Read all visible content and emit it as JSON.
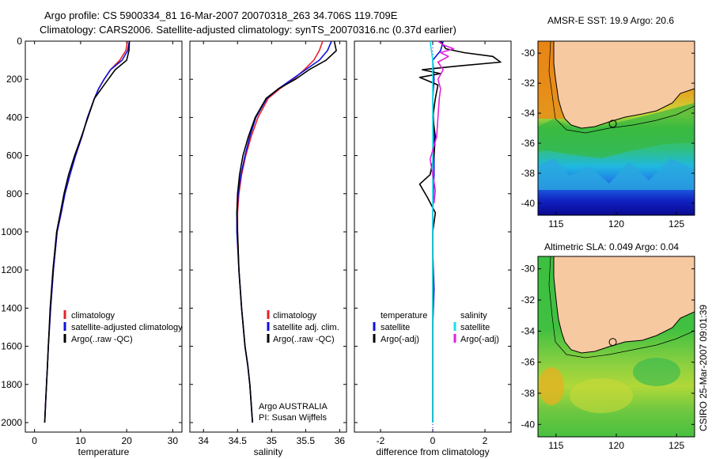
{
  "header": {
    "title_line1": "Argo profile: CS 5900334_81 16-Mar-2007 20070318_263 34.706S 119.709E",
    "title_line2": "Climatology: CARS2006. Satellite-adjusted climatology: synTS_20070316.nc (0.37d earlier)"
  },
  "side_label": "CSIRO 25-Mar-2007 09:01:39",
  "colors": {
    "climatology": "#e8202a",
    "satellite": "#1010e0",
    "argo": "#000000",
    "sat_salinity": "#18e0e8",
    "argo_salinity": "#e020e0",
    "land": "#f7c9a0"
  },
  "chart_data": [
    {
      "type": "line",
      "name": "temperature-panel",
      "xlabel": "temperature",
      "ylabel": "",
      "xlim": [
        -2,
        32
      ],
      "ylim": [
        2050,
        0
      ],
      "xticks": [
        0,
        10,
        20,
        30
      ],
      "yticks": [
        0,
        200,
        400,
        600,
        800,
        1000,
        1200,
        1400,
        1600,
        1800,
        2000
      ],
      "legend": [
        "climatology",
        "satellite-adjusted climatology",
        "Argo(..raw -QC)"
      ],
      "series": [
        {
          "name": "climatology",
          "color": "#e8202a",
          "x": [
            20.2,
            19.8,
            18.5,
            16.5,
            15.1,
            13.9,
            13.0,
            11.5,
            10.3,
            8.9,
            7.7,
            6.6,
            5.8,
            4.9,
            4.1,
            3.5,
            3.0,
            2.8,
            2.6,
            2.4,
            2.2
          ],
          "y": [
            0,
            50,
            100,
            150,
            200,
            250,
            300,
            400,
            500,
            600,
            700,
            800,
            900,
            1000,
            1200,
            1400,
            1600,
            1700,
            1800,
            1900,
            2000
          ]
        },
        {
          "name": "satellite",
          "color": "#1010e0",
          "x": [
            20.6,
            20.2,
            19.0,
            16.5,
            15.1,
            13.9,
            13.0,
            11.5,
            10.3,
            8.9,
            7.7,
            6.6,
            5.8,
            4.9,
            4.1,
            3.5,
            3.0,
            2.8,
            2.6,
            2.4,
            2.2
          ],
          "y": [
            0,
            50,
            100,
            150,
            200,
            250,
            300,
            400,
            500,
            600,
            700,
            800,
            900,
            1000,
            1200,
            1400,
            1600,
            1700,
            1800,
            1900,
            2000
          ]
        },
        {
          "name": "argo",
          "color": "#000000",
          "x": [
            20.6,
            20.5,
            20.0,
            17.5,
            16.0,
            14.5,
            13.0,
            11.6,
            10.2,
            8.7,
            7.4,
            6.4,
            5.6,
            4.8,
            4.0,
            3.4,
            3.0,
            2.8,
            2.6,
            2.4,
            2.2
          ],
          "y": [
            0,
            50,
            100,
            150,
            200,
            250,
            300,
            400,
            500,
            600,
            700,
            800,
            900,
            1000,
            1200,
            1400,
            1600,
            1700,
            1800,
            1900,
            2000
          ]
        }
      ]
    },
    {
      "type": "line",
      "name": "salinity-panel",
      "xlabel": "salinity",
      "ylabel": "",
      "xlim": [
        33.8,
        36.1
      ],
      "ylim": [
        2050,
        0
      ],
      "xticks": [
        34,
        34.5,
        35,
        35.5,
        36
      ],
      "legend": [
        "climatology",
        "satellite adj. clim.",
        "Argo(..raw -QC)"
      ],
      "annotation": [
        "Argo AUSTRALIA",
        "PI: Susan Wijffels"
      ],
      "series": [
        {
          "name": "climatology",
          "color": "#e8202a",
          "x": [
            35.75,
            35.7,
            35.62,
            35.48,
            35.32,
            35.12,
            34.95,
            34.8,
            34.7,
            34.62,
            34.56,
            34.52,
            34.5,
            34.5,
            34.52,
            34.56,
            34.61,
            34.65,
            34.68,
            34.7,
            34.72
          ],
          "y": [
            0,
            50,
            100,
            150,
            200,
            250,
            300,
            400,
            500,
            600,
            700,
            800,
            900,
            1000,
            1200,
            1400,
            1600,
            1700,
            1800,
            1900,
            2000
          ]
        },
        {
          "name": "satellite",
          "color": "#1010e0",
          "x": [
            35.88,
            35.82,
            35.7,
            35.5,
            35.3,
            35.1,
            34.93,
            34.77,
            34.68,
            34.61,
            34.55,
            34.51,
            34.49,
            34.49,
            34.52,
            34.56,
            34.61,
            34.65,
            34.68,
            34.7,
            34.72
          ],
          "y": [
            0,
            50,
            100,
            150,
            200,
            250,
            300,
            400,
            500,
            600,
            700,
            800,
            900,
            1000,
            1200,
            1400,
            1600,
            1700,
            1800,
            1900,
            2000
          ]
        },
        {
          "name": "argo",
          "color": "#000000",
          "x": [
            35.92,
            35.95,
            35.8,
            35.55,
            35.35,
            35.1,
            34.92,
            34.76,
            34.66,
            34.58,
            34.53,
            34.5,
            34.49,
            34.5,
            34.52,
            34.56,
            34.61,
            34.65,
            34.68,
            34.7,
            34.72
          ],
          "y": [
            0,
            50,
            100,
            150,
            200,
            250,
            300,
            400,
            500,
            600,
            700,
            800,
            900,
            1000,
            1200,
            1400,
            1600,
            1700,
            1800,
            1900,
            2000
          ]
        }
      ]
    },
    {
      "type": "line",
      "name": "difference-panel",
      "xlabel": "difference from climatology",
      "ylabel": "",
      "xlim": [
        -3,
        3
      ],
      "ylim": [
        2050,
        0
      ],
      "xticks": [
        -2,
        0,
        2
      ],
      "legend_left_title": "temperature",
      "legend_left": [
        "satellite",
        "Argo(-adj)"
      ],
      "legend_right_title": "salinity",
      "legend_right": [
        "satellite",
        "Argo(-adj)"
      ],
      "series": [
        {
          "name": "temp-satellite",
          "color": "#1010e0",
          "x": [
            0.4,
            0.3,
            0.0,
            0.05,
            0.0,
            0.05,
            0.05,
            0.0,
            0.0,
            0.05,
            0.0,
            0.0,
            0.0,
            0.0
          ],
          "y": [
            0,
            50,
            100,
            200,
            300,
            500,
            700,
            900,
            1100,
            1300,
            1500,
            1700,
            1900,
            2000
          ]
        },
        {
          "name": "temp-argo",
          "color": "#000000",
          "x": [
            0.3,
            0.5,
            1.2,
            2.3,
            2.6,
            1.0,
            -0.4,
            0.3,
            -0.5,
            0.2,
            0.1,
            0.0,
            0.1,
            0.05,
            -0.1,
            -0.5,
            -0.2,
            0.1,
            0.0,
            0.0,
            0.0,
            0.0
          ],
          "y": [
            0,
            40,
            60,
            80,
            110,
            130,
            150,
            170,
            190,
            230,
            300,
            400,
            500,
            600,
            700,
            750,
            820,
            900,
            1000,
            1200,
            1600,
            2000
          ]
        },
        {
          "name": "sal-satellite",
          "color": "#18e0e8",
          "x": [
            -0.1,
            0.0,
            0.0,
            0.0,
            0.0,
            0.0,
            0.0,
            0.0
          ],
          "y": [
            0,
            100,
            300,
            600,
            900,
            1200,
            1600,
            2000
          ]
        },
        {
          "name": "sal-argo",
          "color": "#e020e0",
          "x": [
            0.2,
            0.4,
            0.8,
            0.3,
            0.6,
            0.2,
            0.4,
            0.2,
            0.3,
            0.25,
            0.2,
            0.15,
            -0.1,
            0.0,
            0.1,
            0.05
          ],
          "y": [
            0,
            20,
            40,
            60,
            80,
            110,
            150,
            200,
            250,
            300,
            400,
            500,
            620,
            700,
            780,
            850
          ]
        }
      ]
    },
    {
      "type": "heatmap",
      "name": "sst-map",
      "title": "AMSR-E SST: 19.9 Argo: 20.6",
      "xticks": [
        115,
        120,
        125
      ],
      "yticks": [
        -30,
        -32,
        -34,
        -36,
        -38,
        -40
      ],
      "xlim": [
        113.5,
        126.5
      ],
      "ylim": [
        -40.8,
        -29.2
      ],
      "marker": [
        119.709,
        -34.706
      ]
    },
    {
      "type": "heatmap",
      "name": "sla-map",
      "title": "Altimetric SLA: 0.049 Argo: 0.04",
      "xticks": [
        115,
        120,
        125
      ],
      "yticks": [
        -30,
        -32,
        -34,
        -36,
        -38,
        -40
      ],
      "xlim": [
        113.5,
        126.5
      ],
      "ylim": [
        -40.8,
        -29.2
      ],
      "marker": [
        119.709,
        -34.706
      ]
    }
  ]
}
